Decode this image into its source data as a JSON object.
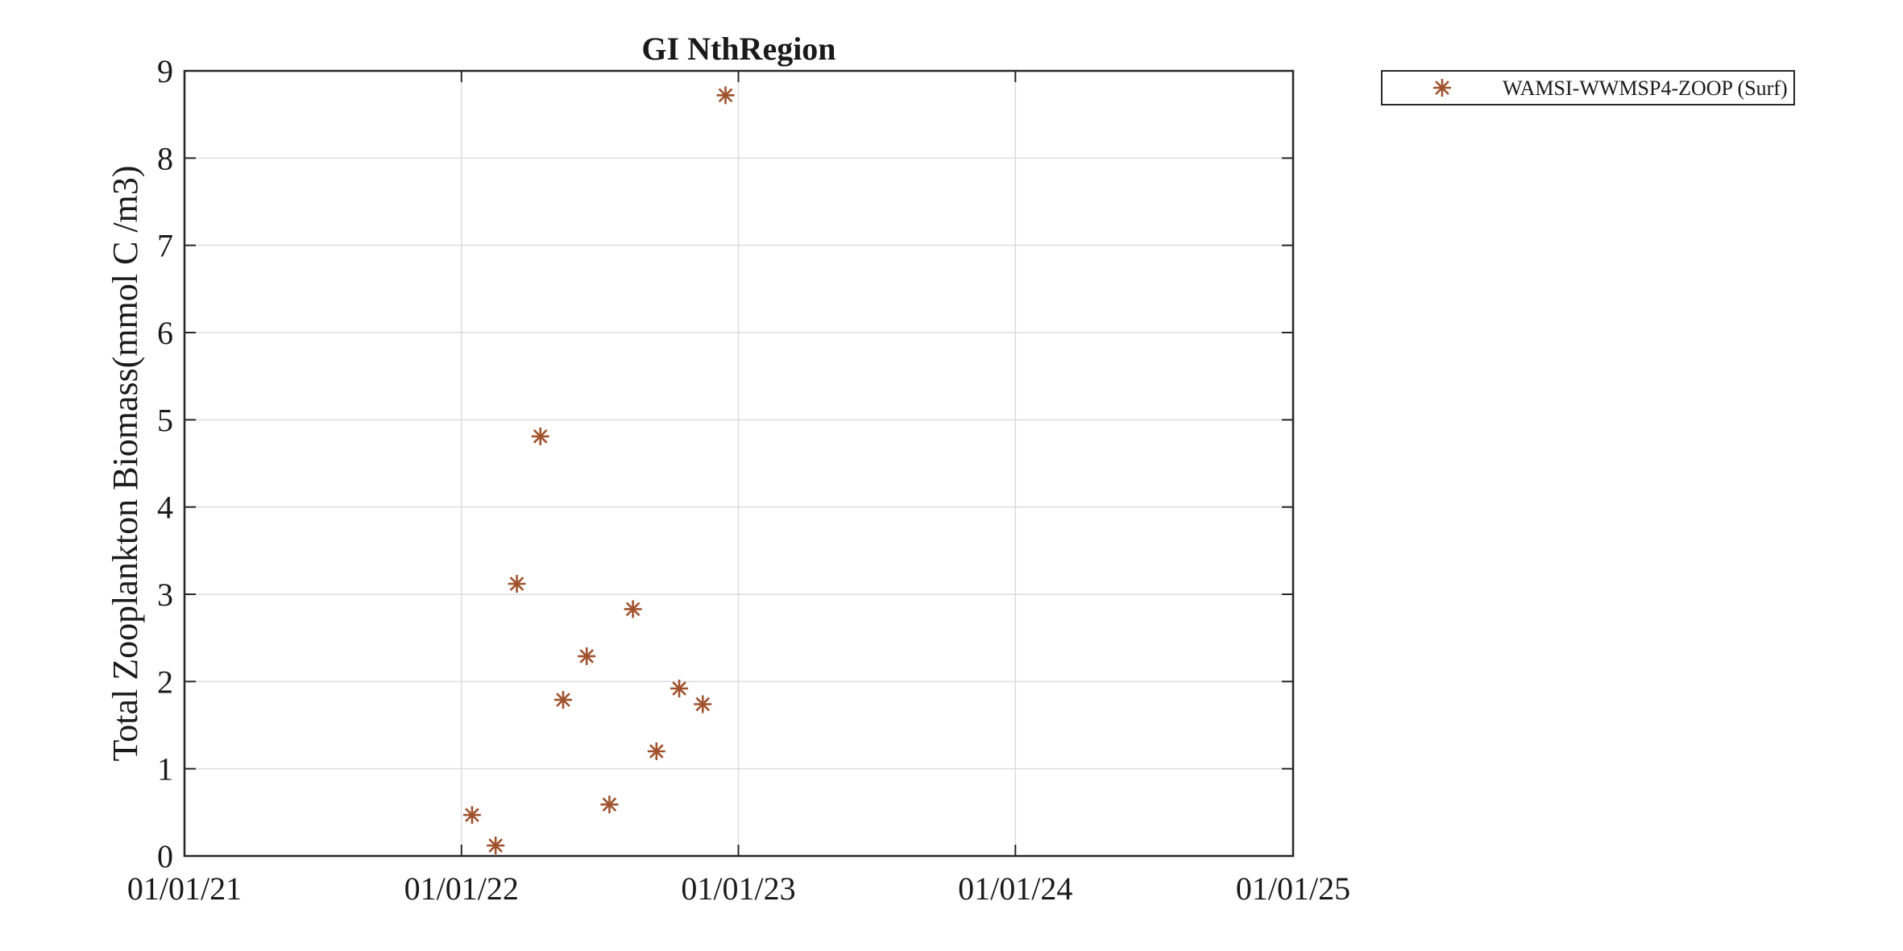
{
  "chart_data": {
    "type": "scatter",
    "title": "GI NthRegion",
    "xlabel": "",
    "ylabel": "Total Zooplankton Biomass(mmol C /m3)",
    "xlim": [
      "2021-01-01",
      "2025-01-01"
    ],
    "ylim": [
      0,
      9
    ],
    "x_ticks": [
      "2021-01-01",
      "2022-01-01",
      "2023-01-01",
      "2024-01-01",
      "2025-01-01"
    ],
    "x_tick_labels": [
      "01/01/21",
      "01/01/22",
      "01/01/23",
      "01/01/24",
      "01/01/25"
    ],
    "y_ticks": [
      0,
      1,
      2,
      3,
      4,
      5,
      6,
      7,
      8,
      9
    ],
    "y_tick_labels": [
      "0",
      "1",
      "2",
      "3",
      "4",
      "5",
      "6",
      "7",
      "8",
      "9"
    ],
    "grid": true,
    "legend_position": "outside top-right",
    "series": [
      {
        "name": "WAMSI-WWMSP4-ZOOP (Surf)",
        "marker": "asterisk",
        "color": "#A0522D",
        "points": [
          {
            "x": "2022-01-15",
            "y": 0.47
          },
          {
            "x": "2022-02-15",
            "y": 0.12
          },
          {
            "x": "2022-03-15",
            "y": 3.12
          },
          {
            "x": "2022-04-15",
            "y": 4.81
          },
          {
            "x": "2022-05-15",
            "y": 1.79
          },
          {
            "x": "2022-06-15",
            "y": 2.29
          },
          {
            "x": "2022-07-15",
            "y": 0.59
          },
          {
            "x": "2022-08-15",
            "y": 2.83
          },
          {
            "x": "2022-09-15",
            "y": 1.2
          },
          {
            "x": "2022-10-15",
            "y": 1.92
          },
          {
            "x": "2022-11-15",
            "y": 1.74
          },
          {
            "x": "2022-12-15",
            "y": 8.72
          }
        ]
      }
    ]
  }
}
